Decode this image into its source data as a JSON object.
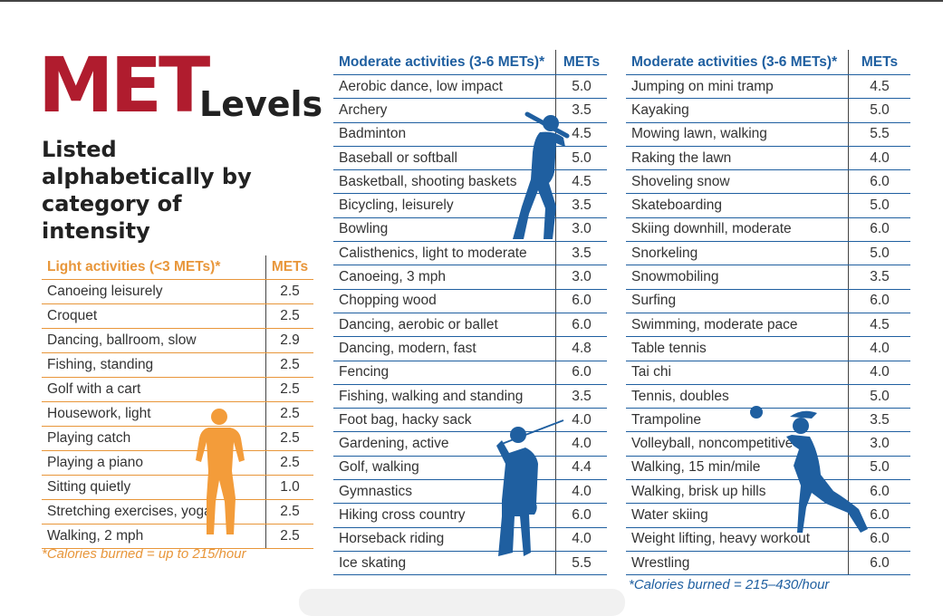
{
  "title": {
    "main": "MET",
    "secondary": "Levels"
  },
  "subtitle": "Listed alphabetically by category of intensity",
  "colors": {
    "title_red": "#b01c2e",
    "light_orange": "#e8963a",
    "moderate_blue": "#1f5fa0"
  },
  "light_table": {
    "header": "Light activities (<3 METs)*",
    "value_header": "METs",
    "rows": [
      {
        "activity": "Canoeing leisurely",
        "mets": "2.5"
      },
      {
        "activity": "Croquet",
        "mets": "2.5"
      },
      {
        "activity": "Dancing, ballroom, slow",
        "mets": "2.9"
      },
      {
        "activity": "Fishing, standing",
        "mets": "2.5"
      },
      {
        "activity": "Golf with a cart",
        "mets": "2.5"
      },
      {
        "activity": "Housework, light",
        "mets": "2.5"
      },
      {
        "activity": "Playing catch",
        "mets": "2.5"
      },
      {
        "activity": "Playing a piano",
        "mets": "2.5"
      },
      {
        "activity": "Sitting quietly",
        "mets": "1.0"
      },
      {
        "activity": "Stretching exercises, yoga",
        "mets": "2.5"
      },
      {
        "activity": "Walking, 2 mph",
        "mets": "2.5"
      }
    ],
    "note": "*Calories burned = up to 215/hour"
  },
  "moderate_table_1": {
    "header": "Moderate activities (3-6 METs)*",
    "value_header": "METs",
    "rows": [
      {
        "activity": "Aerobic dance, low impact",
        "mets": "5.0"
      },
      {
        "activity": "Archery",
        "mets": "3.5"
      },
      {
        "activity": "Badminton",
        "mets": "4.5"
      },
      {
        "activity": "Baseball or softball",
        "mets": "5.0"
      },
      {
        "activity": "Basketball, shooting baskets",
        "mets": "4.5"
      },
      {
        "activity": "Bicycling, leisurely",
        "mets": "3.5"
      },
      {
        "activity": "Bowling",
        "mets": "3.0"
      },
      {
        "activity": "Calisthenics, light to moderate",
        "mets": "3.5"
      },
      {
        "activity": "Canoeing, 3 mph",
        "mets": "3.0"
      },
      {
        "activity": "Chopping wood",
        "mets": "6.0"
      },
      {
        "activity": "Dancing, aerobic or ballet",
        "mets": "6.0"
      },
      {
        "activity": "Dancing, modern, fast",
        "mets": "4.8"
      },
      {
        "activity": "Fencing",
        "mets": "6.0"
      },
      {
        "activity": "Fishing, walking and standing",
        "mets": "3.5"
      },
      {
        "activity": "Foot bag, hacky sack",
        "mets": "4.0"
      },
      {
        "activity": "Gardening, active",
        "mets": "4.0"
      },
      {
        "activity": "Golf, walking",
        "mets": "4.4"
      },
      {
        "activity": "Gymnastics",
        "mets": "4.0"
      },
      {
        "activity": "Hiking cross country",
        "mets": "6.0"
      },
      {
        "activity": "Horseback riding",
        "mets": "4.0"
      },
      {
        "activity": "Ice skating",
        "mets": "5.5"
      }
    ]
  },
  "moderate_table_2": {
    "header": "Moderate activities (3-6 METs)*",
    "value_header": "METs",
    "rows": [
      {
        "activity": "Jumping on mini tramp",
        "mets": "4.5"
      },
      {
        "activity": "Kayaking",
        "mets": "5.0"
      },
      {
        "activity": "Mowing lawn, walking",
        "mets": "5.5"
      },
      {
        "activity": "Raking the lawn",
        "mets": "4.0"
      },
      {
        "activity": "Shoveling snow",
        "mets": "6.0"
      },
      {
        "activity": "Skateboarding",
        "mets": "5.0"
      },
      {
        "activity": "Skiing downhill, moderate",
        "mets": "6.0"
      },
      {
        "activity": "Snorkeling",
        "mets": "5.0"
      },
      {
        "activity": "Snowmobiling",
        "mets": "3.5"
      },
      {
        "activity": "Surfing",
        "mets": "6.0"
      },
      {
        "activity": "Swimming, moderate pace",
        "mets": "4.5"
      },
      {
        "activity": "Table tennis",
        "mets": "4.0"
      },
      {
        "activity": "Tai chi",
        "mets": "4.0"
      },
      {
        "activity": "Tennis, doubles",
        "mets": "5.0"
      },
      {
        "activity": "Trampoline",
        "mets": "3.5"
      },
      {
        "activity": "Volleyball, noncompetitive",
        "mets": "3.0"
      },
      {
        "activity": "Walking, 15 min/mile",
        "mets": "5.0"
      },
      {
        "activity": "Walking, brisk up hills",
        "mets": "6.0"
      },
      {
        "activity": "Water skiing",
        "mets": "6.0"
      },
      {
        "activity": "Weight lifting, heavy workout",
        "mets": "6.0"
      },
      {
        "activity": "Wrestling",
        "mets": "6.0"
      }
    ],
    "note": "*Calories burned = 215–430/hour"
  },
  "icons": [
    "batter-silhouette-icon",
    "walker-silhouette-icon",
    "golfer-silhouette-icon",
    "volleyball-player-silhouette-icon"
  ]
}
